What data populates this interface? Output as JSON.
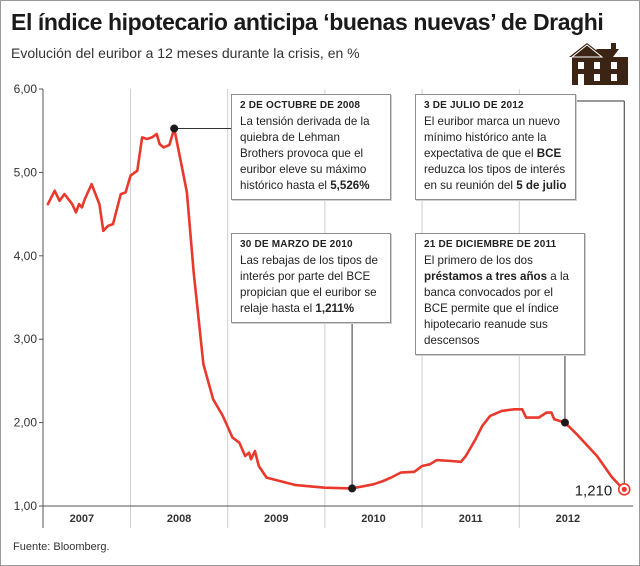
{
  "title": "El índice hipotecario anticipa ‘buenas nuevas’ de Draghi",
  "subtitle": "Evolución del euribor a 12 meses durante la crisis, en %",
  "source": "Fuente: Bloomberg.",
  "icons": {
    "house": "house-icon"
  },
  "colors": {
    "line": "#e8392c",
    "marker": "#1a1a1a",
    "grid": "#cfcfcf",
    "axis": "#555555"
  },
  "annotations": [
    {
      "id": "ann-2008",
      "header": "2 DE OCTUBRE DE 2008",
      "parts": [
        {
          "t": "La tensión derivada de la quiebra de Lehman Brothers provoca que el euribor eleve su máximo histórico hasta el "
        },
        {
          "t": "5,526%",
          "b": true
        }
      ]
    },
    {
      "id": "ann-2012",
      "header": "3 DE JULIO DE 2012",
      "parts": [
        {
          "t": "El euribor marca un nuevo mínimo histórico ante la expectativa de que el "
        },
        {
          "t": "BCE",
          "b": true
        },
        {
          "t": " reduzca los tipos de interés en su reunión del "
        },
        {
          "t": "5 de julio",
          "b": true
        }
      ]
    },
    {
      "id": "ann-2010",
      "header": "30 DE MARZO DE 2010",
      "parts": [
        {
          "t": "Las rebajas de los tipos de interés por parte del BCE propician que el euribor se relaje hasta el "
        },
        {
          "t": "1,211%",
          "b": true
        }
      ]
    },
    {
      "id": "ann-2011",
      "header": "21 DE DICIEMBRE DE 2011",
      "parts": [
        {
          "t": "El primero de los dos "
        },
        {
          "t": "préstamos a tres años",
          "b": true
        },
        {
          "t": " a la banca convocados por el BCE permite que el índice hipotecario reanude sus descensos"
        }
      ]
    }
  ],
  "chart_data": {
    "type": "line",
    "title": "El índice hipotecario anticipa ‘buenas nuevas’ de Draghi",
    "subtitle": "Evolución del euribor a 12 meses durante la crisis, en %",
    "xlabel": "",
    "ylabel": "",
    "ylim": [
      1.0,
      6.0
    ],
    "yticks": [
      "1,00",
      "2,00",
      "3,00",
      "4,00",
      "5,00",
      "6,00"
    ],
    "xticks": [
      {
        "label": "2007",
        "at": 2007.0
      },
      {
        "label": "2008",
        "at": 2008.0
      },
      {
        "label": "2009",
        "at": 2009.0
      },
      {
        "label": "2010",
        "at": 2010.0
      },
      {
        "label": "2011",
        "at": 2011.0
      },
      {
        "label": "2012",
        "at": 2012.0
      }
    ],
    "grid": "vertical",
    "end_label": "1,210",
    "series": [
      {
        "values": [
          [
            2006.65,
            4.62
          ],
          [
            2006.72,
            4.78
          ],
          [
            2006.77,
            4.66
          ],
          [
            2006.82,
            4.74
          ],
          [
            2006.9,
            4.62
          ],
          [
            2006.94,
            4.52
          ],
          [
            2006.97,
            4.62
          ],
          [
            2007.0,
            4.58
          ],
          [
            2007.03,
            4.68
          ],
          [
            2007.1,
            4.86
          ],
          [
            2007.18,
            4.62
          ],
          [
            2007.22,
            4.3
          ],
          [
            2007.27,
            4.36
          ],
          [
            2007.32,
            4.38
          ],
          [
            2007.4,
            4.74
          ],
          [
            2007.45,
            4.76
          ],
          [
            2007.5,
            4.96
          ],
          [
            2007.57,
            5.02
          ],
          [
            2007.62,
            5.42
          ],
          [
            2007.67,
            5.4
          ],
          [
            2007.72,
            5.42
          ],
          [
            2007.77,
            5.46
          ],
          [
            2007.8,
            5.34
          ],
          [
            2007.84,
            5.3
          ],
          [
            2007.9,
            5.33
          ],
          [
            2007.95,
            5.526
          ],
          [
            2008.02,
            5.12
          ],
          [
            2008.08,
            4.76
          ],
          [
            2008.15,
            3.8
          ],
          [
            2008.25,
            2.7
          ],
          [
            2008.35,
            2.28
          ],
          [
            2008.45,
            2.08
          ],
          [
            2008.55,
            1.82
          ],
          [
            2008.62,
            1.76
          ],
          [
            2008.68,
            1.6
          ],
          [
            2008.72,
            1.64
          ],
          [
            2008.74,
            1.56
          ],
          [
            2008.78,
            1.66
          ],
          [
            2008.82,
            1.48
          ],
          [
            2008.9,
            1.34
          ],
          [
            2009.2,
            1.25
          ],
          [
            2009.5,
            1.22
          ],
          [
            2009.78,
            1.211
          ],
          [
            2010.0,
            1.26
          ],
          [
            2010.1,
            1.3
          ],
          [
            2010.18,
            1.34
          ],
          [
            2010.28,
            1.4
          ],
          [
            2010.42,
            1.41
          ],
          [
            2010.5,
            1.48
          ],
          [
            2010.58,
            1.5
          ],
          [
            2010.65,
            1.55
          ],
          [
            2010.8,
            1.54
          ],
          [
            2010.9,
            1.53
          ],
          [
            2010.95,
            1.6
          ],
          [
            2011.0,
            1.7
          ],
          [
            2011.05,
            1.8
          ],
          [
            2011.12,
            1.96
          ],
          [
            2011.2,
            2.08
          ],
          [
            2011.32,
            2.14
          ],
          [
            2011.45,
            2.16
          ],
          [
            2011.53,
            2.16
          ],
          [
            2011.57,
            2.06
          ],
          [
            2011.7,
            2.06
          ],
          [
            2011.78,
            2.12
          ],
          [
            2011.83,
            2.12
          ],
          [
            2011.86,
            2.04
          ],
          [
            2011.97,
            2.0
          ],
          [
            2012.1,
            1.85
          ],
          [
            2012.3,
            1.6
          ],
          [
            2012.45,
            1.35
          ],
          [
            2012.53,
            1.25
          ],
          [
            2012.58,
            1.2
          ]
        ]
      }
    ],
    "markers": [
      [
        2007.95,
        5.526
      ],
      [
        2009.78,
        1.211
      ],
      [
        2011.97,
        2.0
      ]
    ],
    "end_marker": [
      2012.58,
      1.2
    ]
  }
}
